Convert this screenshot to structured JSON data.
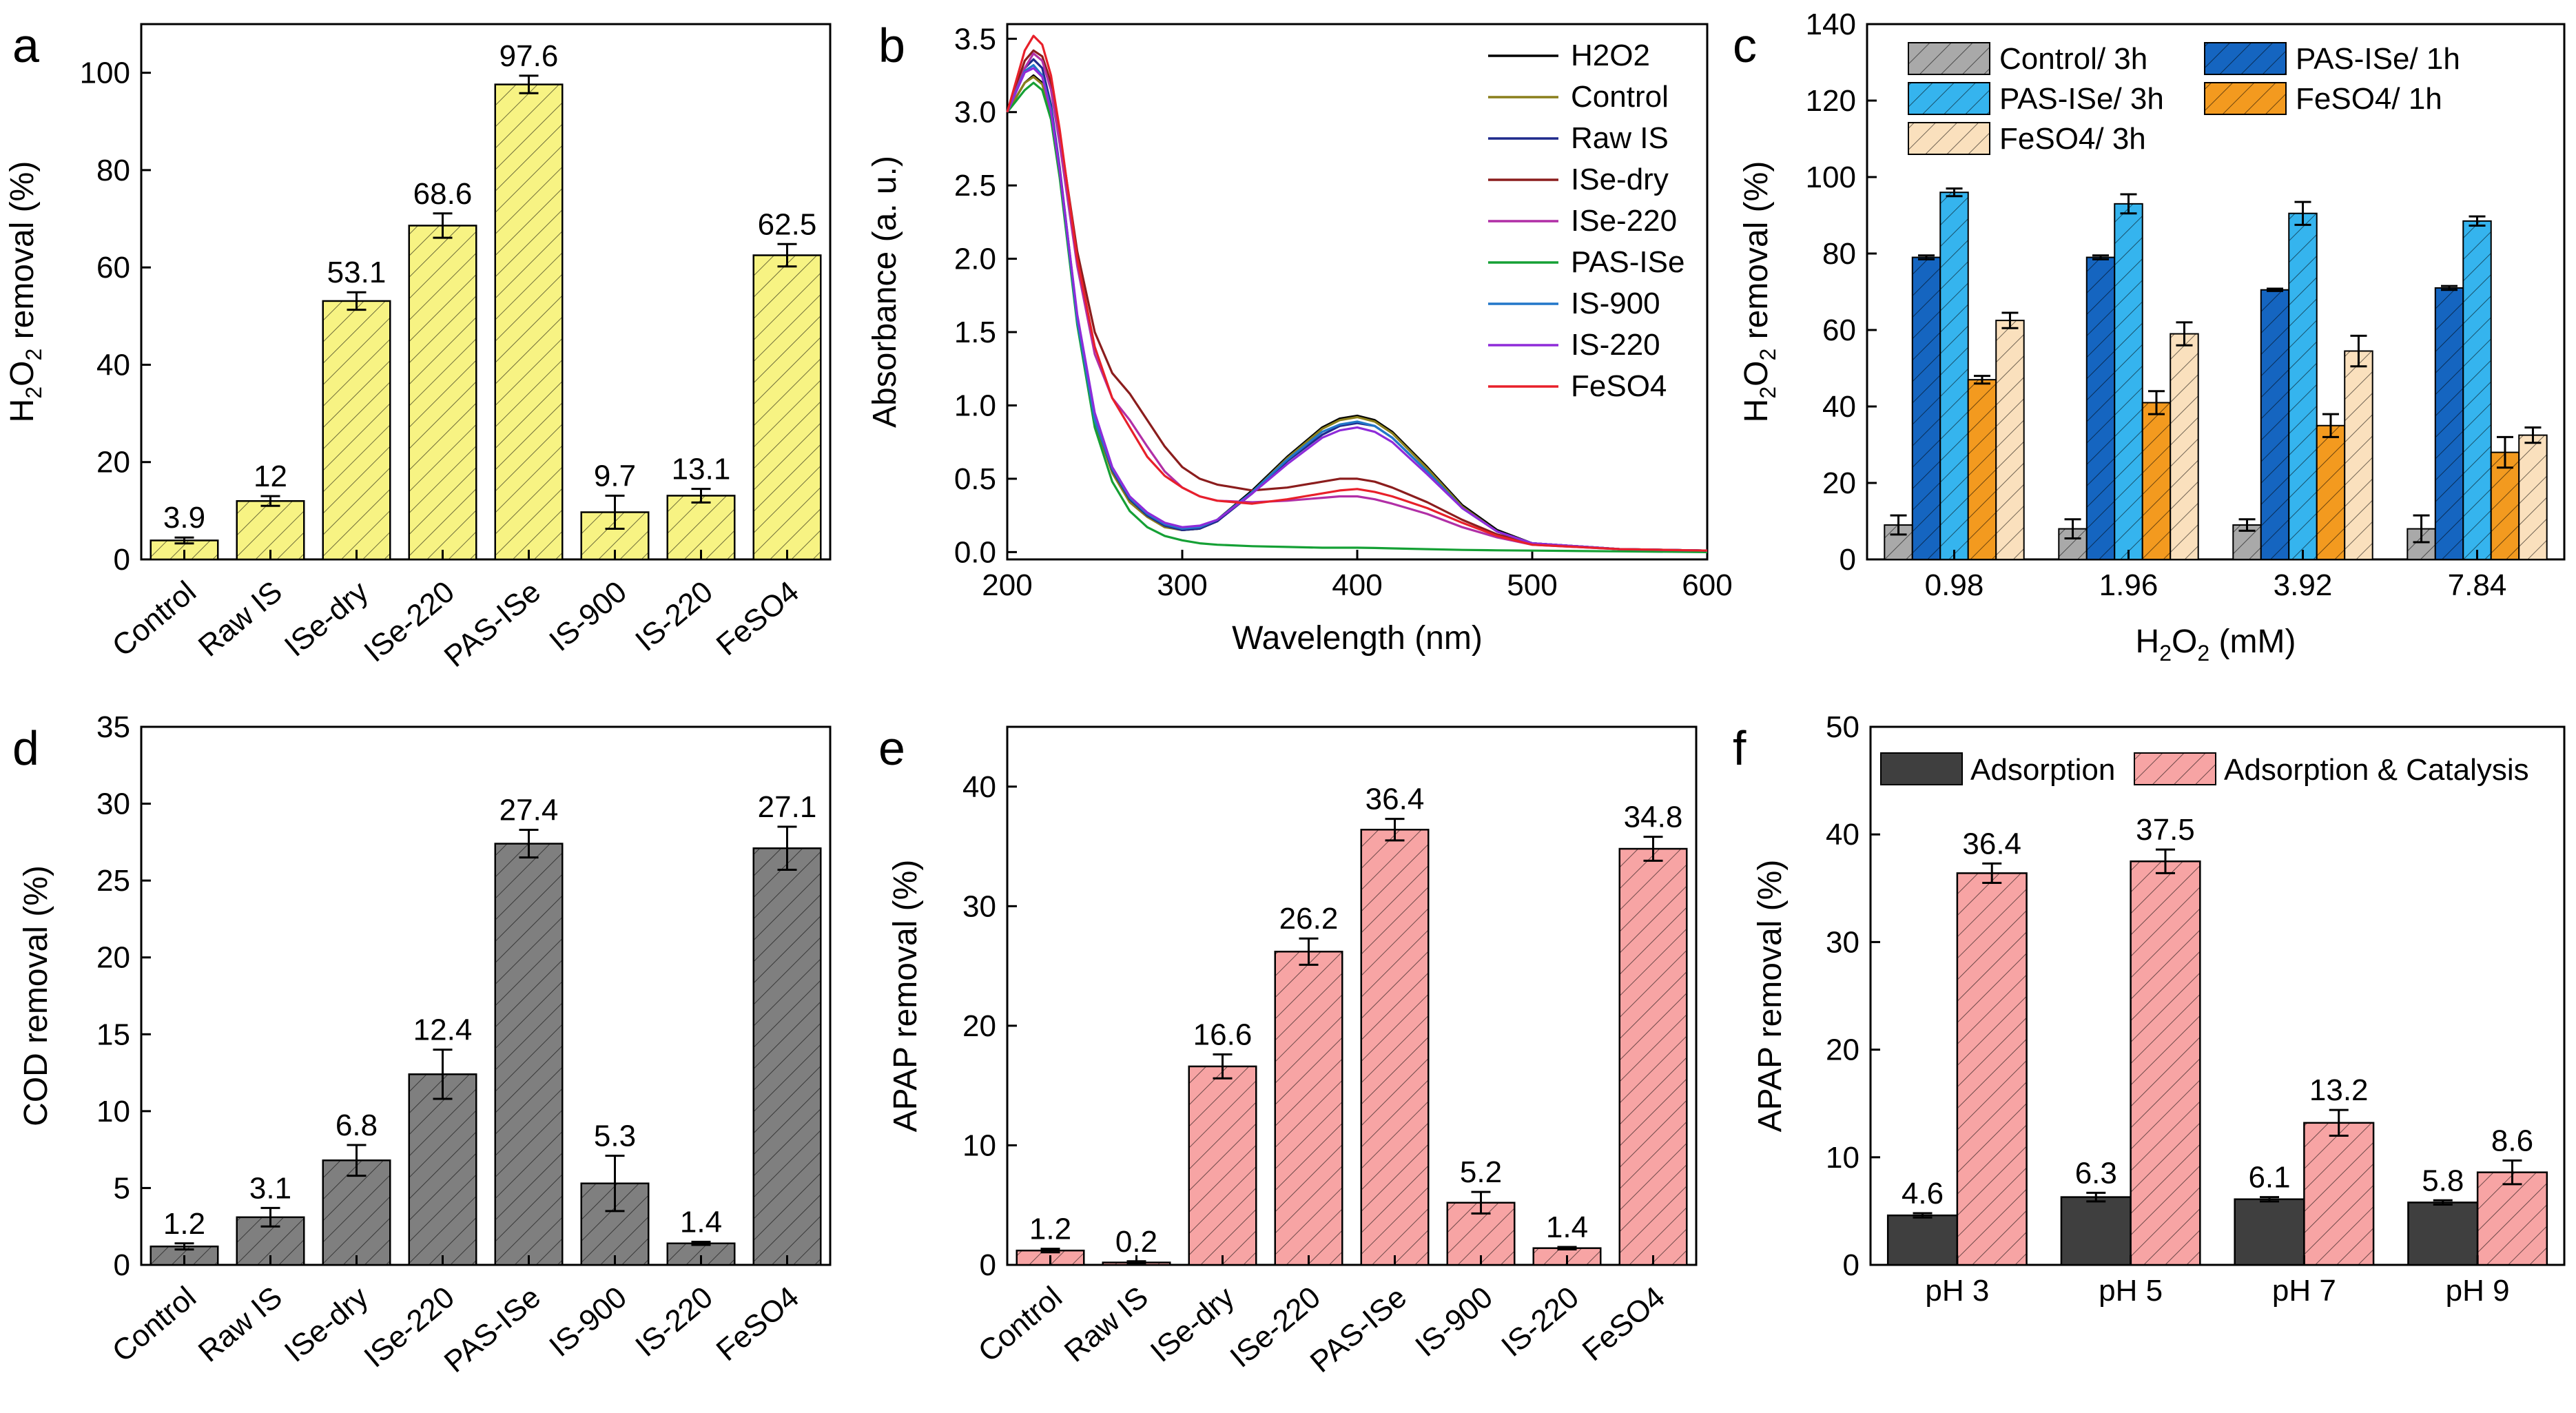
{
  "colors": {
    "yellow": "#f7f383",
    "gray": "#7f7f7f",
    "pink": "#f7a4a4",
    "dark": "#3f3f3f",
    "blue_dark": "#1565c0",
    "blue_light": "#35b4ee",
    "orange": "#f39a1f",
    "peach": "#fae0bd",
    "lgray": "#a9a9a9"
  },
  "chart_data": [
    {
      "panel": "a",
      "type": "bar",
      "categories": [
        "Control",
        "Raw IS",
        "ISe-dry",
        "ISe-220",
        "PAS-ISe",
        "IS-900",
        "IS-220",
        "FeSO4"
      ],
      "values": [
        3.9,
        12,
        53.1,
        68.6,
        97.6,
        9.7,
        13.1,
        62.5
      ],
      "value_labels": [
        "3.9",
        "12",
        "53.1",
        "68.6",
        "97.6",
        "9.7",
        "13.1",
        "62.5"
      ],
      "errors": [
        0.6,
        1.0,
        1.8,
        2.5,
        1.8,
        3.4,
        1.4,
        2.3
      ],
      "ylabel": "H2O2 removal (%)",
      "ylabel_main": "H",
      "ylabel_sub1": "2",
      "ylabel_mid": "O",
      "ylabel_sub2": "2",
      "ylabel_tail": " removal (%)",
      "ylim": [
        0,
        110
      ],
      "yticks": [
        "0",
        "20",
        "40",
        "60",
        "80",
        "100"
      ],
      "color": "yellow",
      "hatched": true
    },
    {
      "panel": "b",
      "type": "line",
      "xlabel": "Wavelength (nm)",
      "ylabel": "Absorbance (a. u.)",
      "xlim": [
        200,
        600
      ],
      "ylim": [
        -0.05,
        3.6
      ],
      "xticks": [
        "200",
        "300",
        "400",
        "500",
        "600"
      ],
      "yticks": [
        "0.0",
        "0.5",
        "1.0",
        "1.5",
        "2.0",
        "2.5",
        "3.0",
        "3.5"
      ],
      "x": [
        200,
        210,
        215,
        220,
        225,
        230,
        240,
        250,
        260,
        270,
        280,
        290,
        300,
        310,
        320,
        340,
        360,
        380,
        390,
        400,
        410,
        420,
        440,
        460,
        480,
        500,
        550,
        600
      ],
      "series": [
        {
          "name": "H2O2",
          "color": "#000000",
          "values": [
            3.0,
            3.2,
            3.25,
            3.2,
            3.0,
            2.6,
            1.6,
            0.9,
            0.55,
            0.35,
            0.25,
            0.18,
            0.15,
            0.16,
            0.22,
            0.42,
            0.65,
            0.85,
            0.91,
            0.93,
            0.9,
            0.82,
            0.58,
            0.32,
            0.15,
            0.06,
            0.02,
            0.01
          ]
        },
        {
          "name": "Control",
          "color": "#8a7f1c",
          "values": [
            3.0,
            3.2,
            3.24,
            3.19,
            2.98,
            2.58,
            1.58,
            0.88,
            0.54,
            0.34,
            0.24,
            0.17,
            0.15,
            0.16,
            0.21,
            0.41,
            0.64,
            0.84,
            0.9,
            0.92,
            0.89,
            0.81,
            0.57,
            0.31,
            0.14,
            0.06,
            0.02,
            0.01
          ]
        },
        {
          "name": "Raw IS",
          "color": "#1f2a8c",
          "values": [
            3.0,
            3.3,
            3.36,
            3.3,
            3.05,
            2.62,
            1.6,
            0.9,
            0.56,
            0.36,
            0.25,
            0.18,
            0.15,
            0.16,
            0.21,
            0.4,
            0.62,
            0.8,
            0.86,
            0.88,
            0.86,
            0.78,
            0.55,
            0.3,
            0.14,
            0.06,
            0.02,
            0.01
          ]
        },
        {
          "name": "ISe-dry",
          "color": "#8b1d1d",
          "values": [
            3.0,
            3.35,
            3.42,
            3.38,
            3.2,
            2.85,
            2.05,
            1.5,
            1.22,
            1.08,
            0.9,
            0.72,
            0.58,
            0.5,
            0.46,
            0.42,
            0.44,
            0.48,
            0.5,
            0.5,
            0.48,
            0.44,
            0.34,
            0.22,
            0.12,
            0.06,
            0.02,
            0.01
          ]
        },
        {
          "name": "ISe-220",
          "color": "#b12fa6",
          "values": [
            3.0,
            3.3,
            3.4,
            3.35,
            3.15,
            2.78,
            1.95,
            1.35,
            1.05,
            0.9,
            0.72,
            0.55,
            0.44,
            0.38,
            0.35,
            0.34,
            0.35,
            0.37,
            0.38,
            0.38,
            0.36,
            0.33,
            0.26,
            0.17,
            0.1,
            0.05,
            0.02,
            0.01
          ]
        },
        {
          "name": "PAS-ISe",
          "color": "#15a035",
          "values": [
            3.0,
            3.15,
            3.2,
            3.15,
            2.95,
            2.55,
            1.55,
            0.85,
            0.48,
            0.28,
            0.17,
            0.11,
            0.08,
            0.06,
            0.05,
            0.04,
            0.035,
            0.03,
            0.03,
            0.03,
            0.028,
            0.025,
            0.02,
            0.015,
            0.012,
            0.01,
            0.005,
            0.0
          ]
        },
        {
          "name": "IS-900",
          "color": "#2277c9",
          "values": [
            3.0,
            3.28,
            3.32,
            3.25,
            3.02,
            2.6,
            1.58,
            0.9,
            0.57,
            0.37,
            0.26,
            0.19,
            0.16,
            0.17,
            0.22,
            0.41,
            0.63,
            0.82,
            0.87,
            0.89,
            0.86,
            0.78,
            0.55,
            0.3,
            0.14,
            0.06,
            0.02,
            0.01
          ]
        },
        {
          "name": "IS-220",
          "color": "#8f2bd9",
          "values": [
            3.0,
            3.27,
            3.3,
            3.24,
            3.0,
            2.6,
            1.62,
            0.95,
            0.58,
            0.38,
            0.27,
            0.2,
            0.17,
            0.18,
            0.22,
            0.4,
            0.6,
            0.78,
            0.83,
            0.85,
            0.82,
            0.75,
            0.53,
            0.3,
            0.14,
            0.06,
            0.02,
            0.01
          ]
        },
        {
          "name": "FeSO4",
          "color": "#e8202a",
          "values": [
            3.0,
            3.42,
            3.52,
            3.46,
            3.25,
            2.88,
            2.0,
            1.4,
            1.05,
            0.85,
            0.65,
            0.52,
            0.44,
            0.38,
            0.35,
            0.33,
            0.36,
            0.4,
            0.42,
            0.43,
            0.41,
            0.38,
            0.3,
            0.2,
            0.11,
            0.05,
            0.02,
            0.01
          ]
        }
      ]
    },
    {
      "panel": "c",
      "type": "bar",
      "categories": [
        "0.98",
        "1.96",
        "3.92",
        "7.84"
      ],
      "xlabel": "H2O2 (mM)",
      "xlabel_main": "H",
      "xlabel_sub1": "2",
      "xlabel_mid": "O",
      "xlabel_sub2": "2",
      "xlabel_tail": " (mM)",
      "ylabel": "H2O2 removal (%)",
      "ylim": [
        0,
        140
      ],
      "yticks": [
        "0",
        "20",
        "40",
        "60",
        "80",
        "100",
        "120",
        "140"
      ],
      "series": [
        {
          "name": "Control/ 3h",
          "color": "lgray",
          "values": [
            9,
            8,
            9,
            8
          ],
          "errors": [
            2.5,
            2.5,
            1.5,
            3.5
          ]
        },
        {
          "name": "PAS-ISe/ 1h",
          "color": "blue_dark",
          "values": [
            79,
            79,
            70.5,
            71
          ],
          "errors": [
            0.5,
            0.5,
            0.3,
            0.5
          ]
        },
        {
          "name": "PAS-ISe/ 3h",
          "color": "blue_light",
          "values": [
            96,
            93,
            90.5,
            88.5
          ],
          "errors": [
            1,
            2.5,
            3,
            1.2
          ]
        },
        {
          "name": "FeSO4/ 1h",
          "color": "orange",
          "values": [
            47,
            41,
            35,
            28
          ],
          "errors": [
            1,
            3,
            3,
            4
          ]
        },
        {
          "name": "FeSO4/ 3h",
          "color": "peach",
          "values": [
            62.5,
            59,
            54.5,
            32.5
          ],
          "errors": [
            2,
            3,
            4,
            2
          ]
        }
      ]
    },
    {
      "panel": "d",
      "type": "bar",
      "categories": [
        "Control",
        "Raw IS",
        "ISe-dry",
        "ISe-220",
        "PAS-ISe",
        "IS-900",
        "IS-220",
        "FeSO4"
      ],
      "values": [
        1.2,
        3.1,
        6.8,
        12.4,
        27.4,
        5.3,
        1.4,
        27.1
      ],
      "value_labels": [
        "1.2",
        "3.1",
        "6.8",
        "12.4",
        "27.4",
        "5.3",
        "1.4",
        "27.1"
      ],
      "errors": [
        0.2,
        0.6,
        1.0,
        1.6,
        0.9,
        1.8,
        0.1,
        1.4
      ],
      "ylabel": "COD removal (%)",
      "ylim": [
        0,
        35
      ],
      "yticks": [
        "0",
        "5",
        "10",
        "15",
        "20",
        "25",
        "30",
        "35"
      ],
      "color": "gray",
      "hatched": true
    },
    {
      "panel": "e",
      "type": "bar",
      "categories": [
        "Control",
        "Raw IS",
        "ISe-dry",
        "ISe-220",
        "PAS-ISe",
        "IS-900",
        "IS-220",
        "FeSO4"
      ],
      "values": [
        1.2,
        0.2,
        16.6,
        26.2,
        36.4,
        5.2,
        1.4,
        34.8
      ],
      "value_labels": [
        "1.2",
        "0.2",
        "16.6",
        "26.2",
        "36.4",
        "5.2",
        "1.4",
        "34.8"
      ],
      "errors": [
        0.15,
        0.1,
        1.0,
        1.1,
        0.9,
        0.9,
        0.1,
        1.0
      ],
      "ylabel": "APAP removal (%)",
      "ylim": [
        0,
        45
      ],
      "yticks": [
        "0",
        "10",
        "20",
        "30",
        "40"
      ],
      "color": "pink",
      "hatched": true
    },
    {
      "panel": "f",
      "type": "bar",
      "categories": [
        "pH 3",
        "pH 5",
        "pH 7",
        "pH 9"
      ],
      "ylabel": "APAP removal (%)",
      "ylim": [
        0,
        50
      ],
      "yticks": [
        "0",
        "10",
        "20",
        "30",
        "40",
        "50"
      ],
      "series": [
        {
          "name": "Adsorption",
          "color": "dark",
          "values": [
            4.6,
            6.3,
            6.1,
            5.8
          ],
          "value_labels": [
            "4.6",
            "6.3",
            "6.1",
            "5.8"
          ],
          "errors": [
            0.2,
            0.4,
            0.2,
            0.2
          ]
        },
        {
          "name": "Adsorption & Catalysis",
          "color": "pink",
          "values": [
            36.4,
            37.5,
            13.2,
            8.6
          ],
          "value_labels": [
            "36.4",
            "37.5",
            "13.2",
            "8.6"
          ],
          "errors": [
            0.9,
            1.1,
            1.2,
            1.1
          ]
        }
      ]
    }
  ]
}
